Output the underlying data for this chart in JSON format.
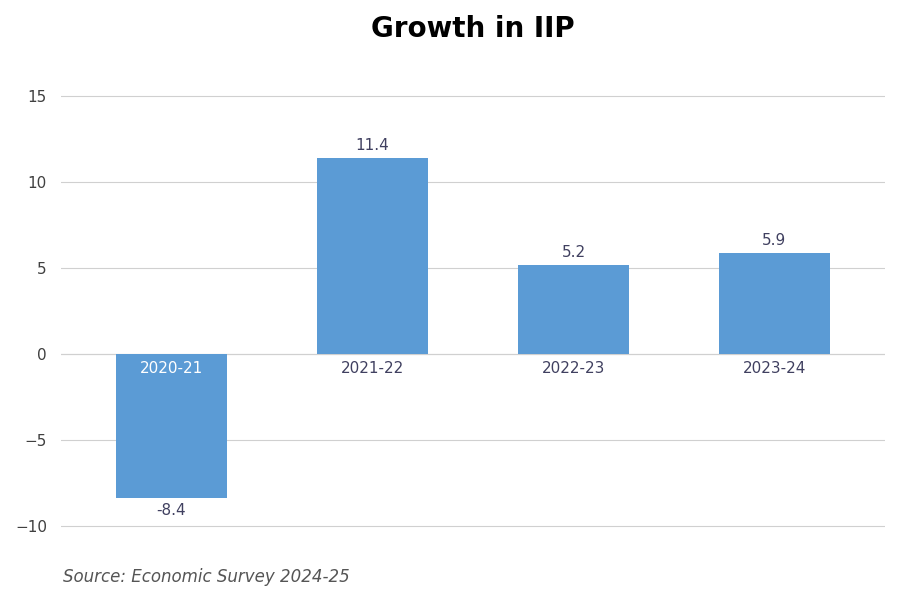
{
  "title": "Growth in IIP",
  "categories": [
    "2020-21",
    "2021-22",
    "2022-23",
    "2023-24"
  ],
  "values": [
    -8.4,
    11.4,
    5.2,
    5.9
  ],
  "bar_color": "#5B9BD5",
  "ylim": [
    -11,
    17
  ],
  "yticks": [
    -10,
    -5,
    0,
    5,
    10,
    15
  ],
  "title_fontsize": 20,
  "title_fontweight": "bold",
  "cat_label_fontsize": 11,
  "val_label_fontsize": 11,
  "val_label_color": "#404060",
  "cat_label_color_inside": "#FFFFFF",
  "cat_label_color_outside": "#404060",
  "source_text": "Source: Economic Survey 2024-25",
  "source_fontsize": 12,
  "background_color": "#FFFFFF",
  "grid_color": "#D0D0D0",
  "bar_width": 0.55
}
